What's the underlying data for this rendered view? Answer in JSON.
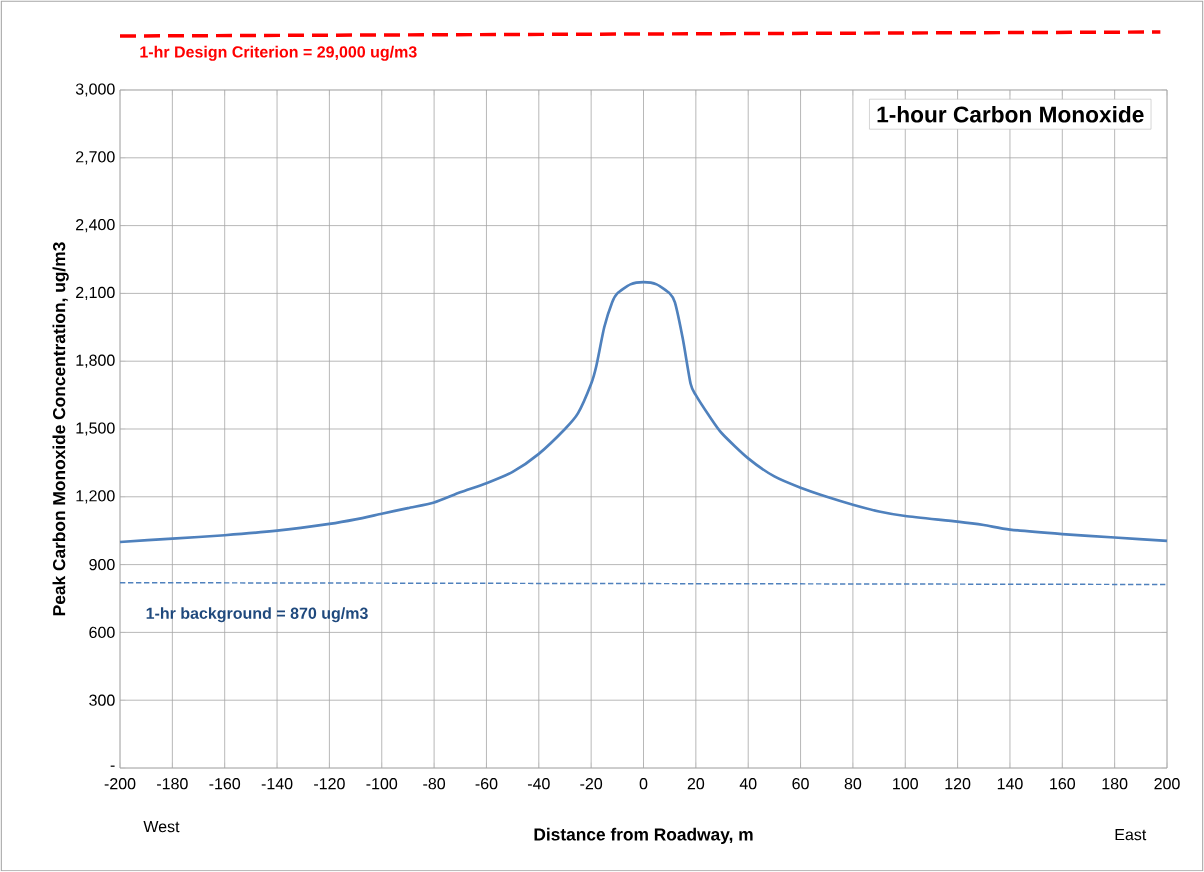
{
  "chart_data": {
    "type": "line",
    "title": "1-hour Carbon Monoxide",
    "xlabel": "Distance from Roadway, m",
    "ylabel": "Peak Carbon Monoxide Concentration, ug/m3",
    "annotations": [
      "1-hr Design Criterion = 29,000 ug/m3",
      "West",
      "East"
    ],
    "xlim": [
      -200,
      200
    ],
    "xticks": [
      -200,
      -180,
      -160,
      -140,
      -120,
      -100,
      -80,
      -60,
      -40,
      -20,
      0,
      20,
      40,
      60,
      80,
      100,
      120,
      140,
      160,
      180,
      200
    ],
    "ylim": [
      0,
      3000
    ],
    "yticks": [
      {
        "value": 0,
        "label": "-"
      },
      300,
      600,
      900,
      {
        "value": 1200,
        "label": "1,200"
      },
      {
        "value": 1500,
        "label": "1,500"
      },
      {
        "value": 1800,
        "label": "1,800"
      },
      {
        "value": 2100,
        "label": "2,100"
      },
      {
        "value": 2400,
        "label": "2,400"
      },
      {
        "value": 2700,
        "label": "2,700"
      },
      {
        "value": 3000,
        "label": "3,000"
      }
    ],
    "grid": true,
    "marker": "none",
    "series": [
      {
        "color": "#4f81bd",
        "line_style": "solid",
        "x": [
          -200,
          -180,
          -160,
          -140,
          -120,
          -110,
          -100,
          -90,
          -80,
          -70,
          -60,
          -50,
          -40,
          -30,
          -25,
          -20,
          -18,
          -15,
          -12,
          -10,
          -5,
          0,
          5,
          10,
          12,
          15,
          18,
          20,
          25,
          30,
          40,
          50,
          60,
          70,
          80,
          90,
          100,
          120,
          130,
          140,
          160,
          180,
          200
        ],
        "values": [
          1000,
          1015,
          1030,
          1050,
          1080,
          1100,
          1125,
          1150,
          1175,
          1220,
          1260,
          1310,
          1390,
          1500,
          1570,
          1700,
          1780,
          1950,
          2060,
          2100,
          2140,
          2150,
          2140,
          2100,
          2060,
          1900,
          1700,
          1650,
          1560,
          1480,
          1370,
          1290,
          1240,
          1200,
          1165,
          1135,
          1115,
          1090,
          1075,
          1055,
          1035,
          1020,
          1005
        ]
      },
      {
        "name": "1-hr background = 870 ug/m3",
        "color": "#4f81bd",
        "line_style": "dashed",
        "x": [
          -200,
          200
        ],
        "values": [
          820,
          812
        ]
      }
    ]
  }
}
